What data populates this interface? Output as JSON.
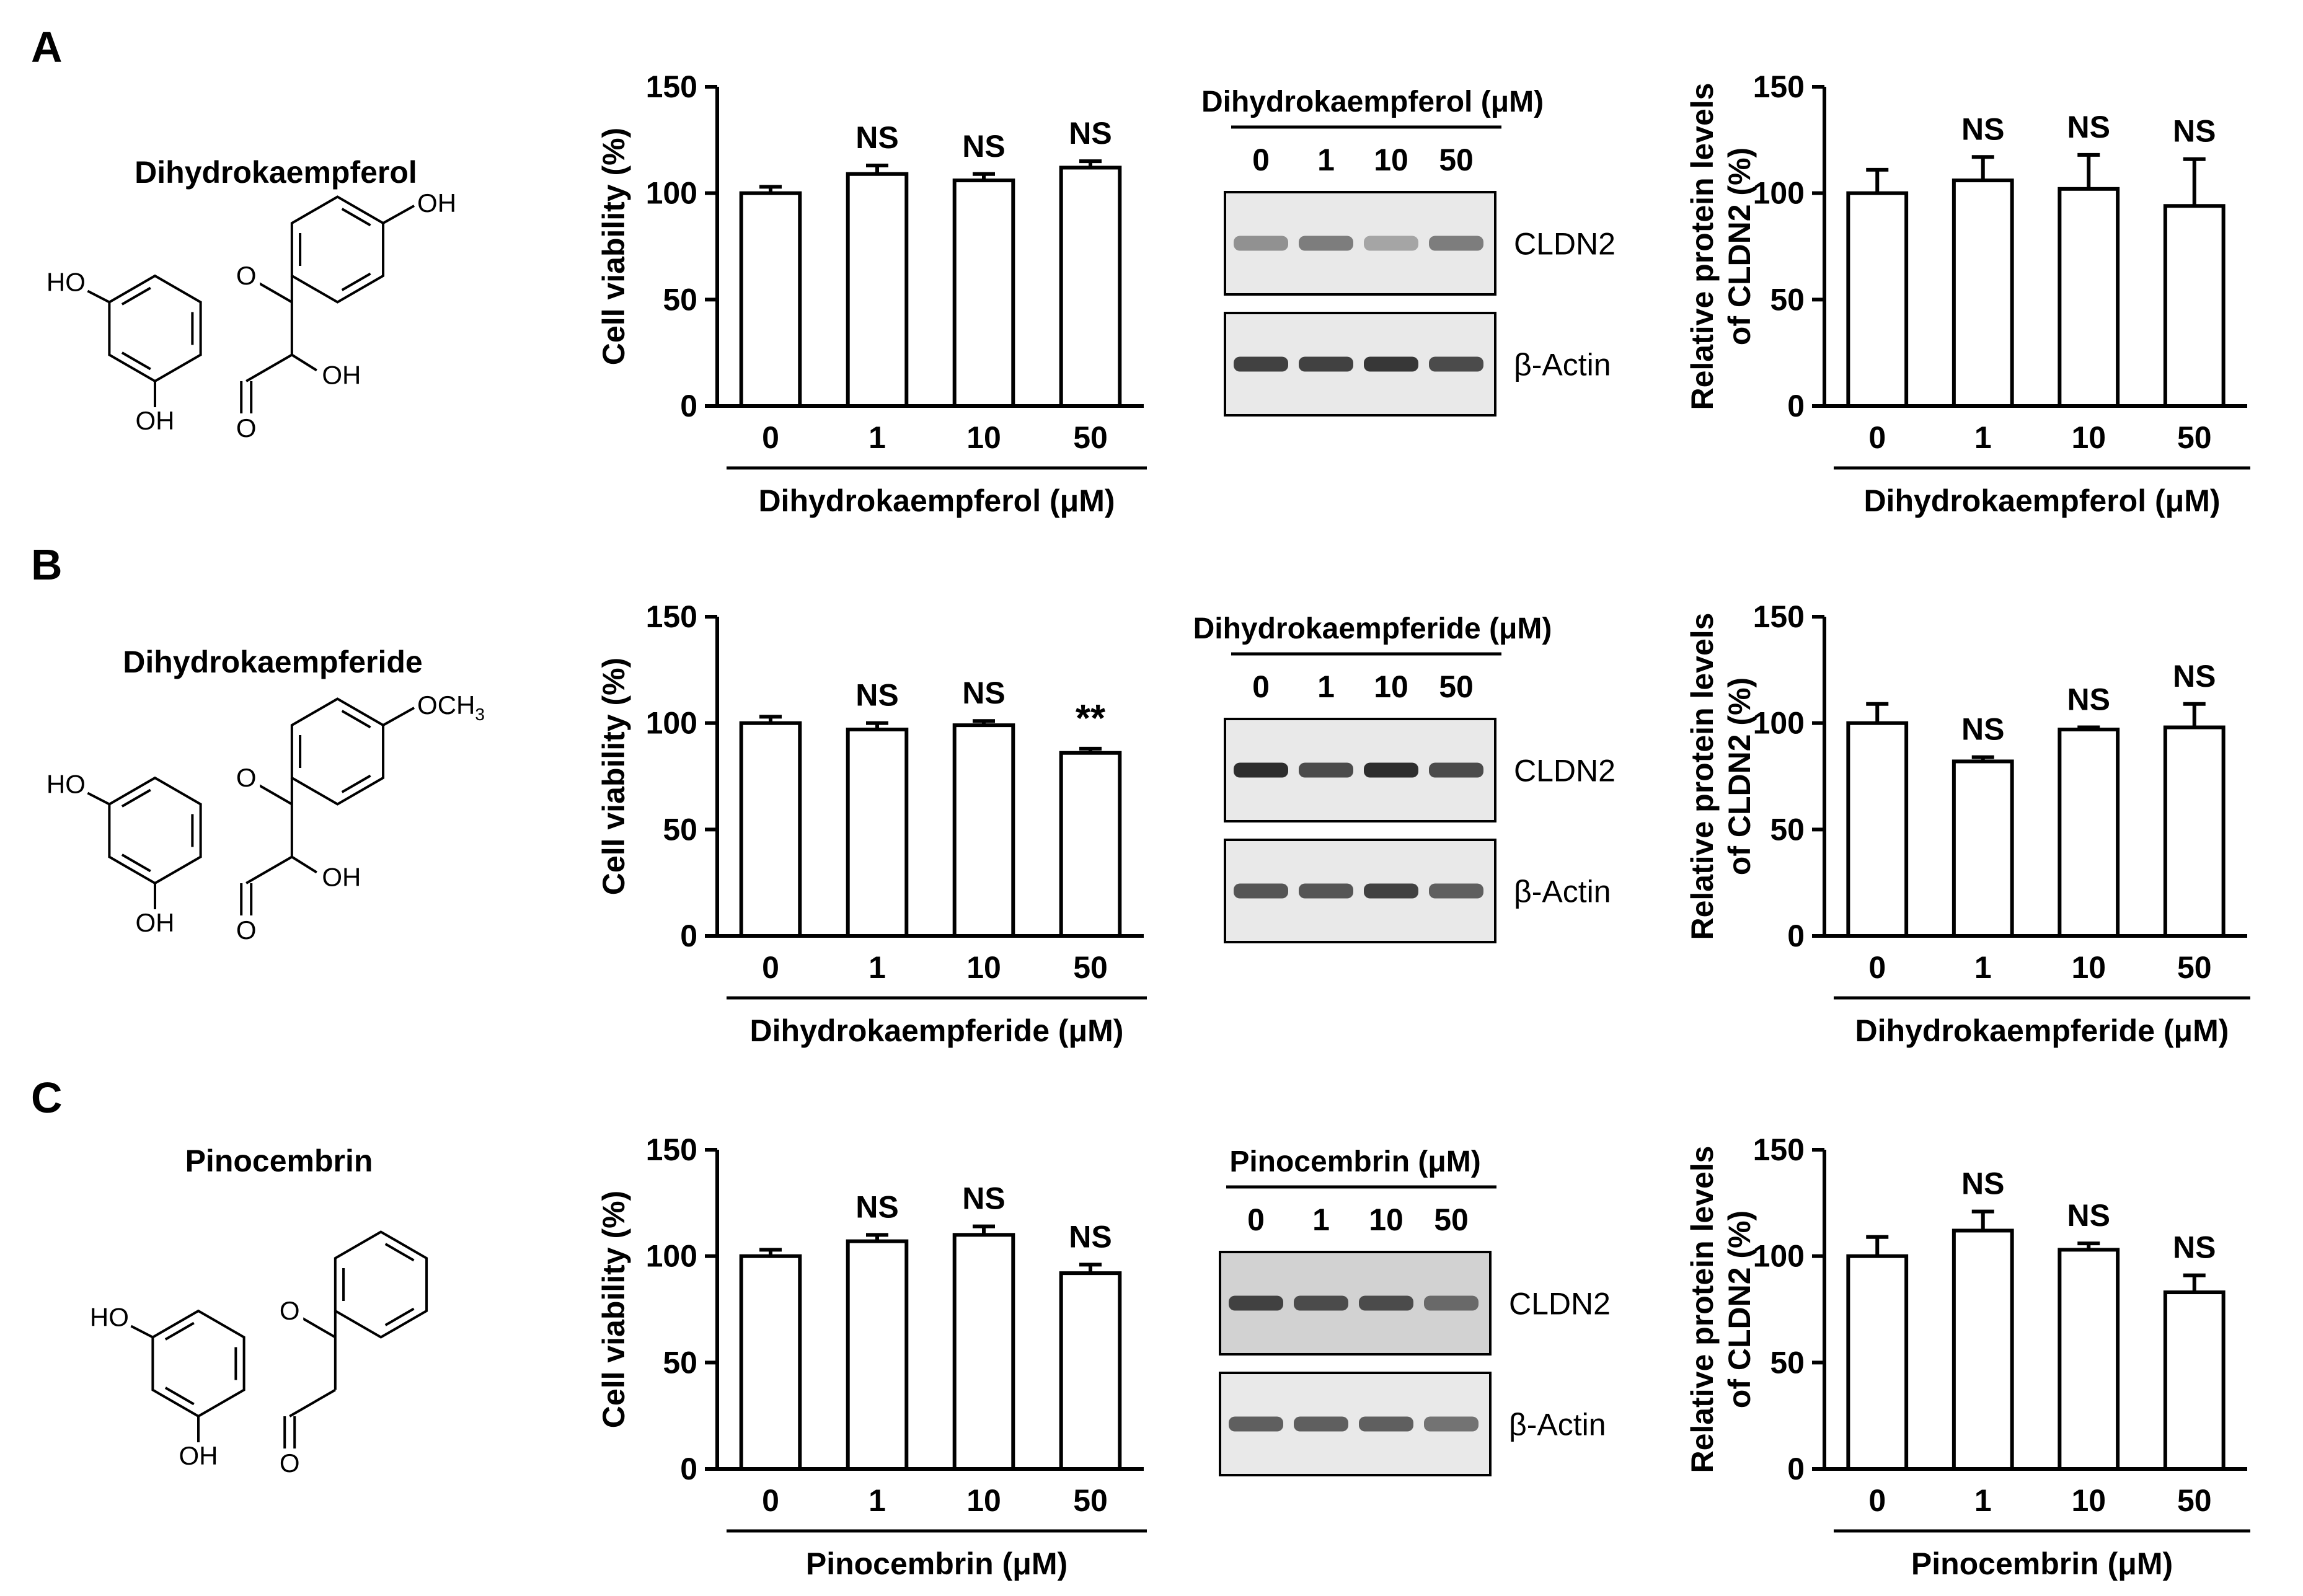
{
  "panels": [
    {
      "letter": "A",
      "compound": "Dihydrokaempferol",
      "structure": {
        "substituent": "OH",
        "ring_c_oh": "OH",
        "labels": [
          "HO",
          "OH",
          "O",
          "OH"
        ]
      },
      "blot": {
        "title": "Dihydrokaempferol (μM)",
        "lanes": [
          "0",
          "1",
          "10",
          "50"
        ],
        "rows": [
          {
            "label": "CLDN2",
            "band_intensity": [
              0.45,
              0.55,
              0.35,
              0.55
            ],
            "background": "light"
          },
          {
            "label": "β-Actin",
            "band_intensity": [
              0.85,
              0.85,
              0.9,
              0.8
            ],
            "background": "light"
          }
        ]
      }
    },
    {
      "letter": "B",
      "compound": "Dihydrokaempferide",
      "structure": {
        "substituent": "OCH3",
        "ring_c_oh": "OH",
        "labels": [
          "HO",
          "OH",
          "O",
          "OH"
        ]
      },
      "blot": {
        "title": "Dihydrokaempferide (μM)",
        "lanes": [
          "0",
          "1",
          "10",
          "50"
        ],
        "rows": [
          {
            "label": "CLDN2",
            "band_intensity": [
              0.95,
              0.8,
              0.95,
              0.8
            ],
            "background": "light"
          },
          {
            "label": "β-Actin",
            "band_intensity": [
              0.75,
              0.75,
              0.85,
              0.7
            ],
            "background": "light"
          }
        ]
      }
    },
    {
      "letter": "C",
      "compound": "Pinocembrin",
      "structure": {
        "substituent": "",
        "ring_c_oh": "",
        "labels": [
          "HO",
          "OH",
          "O"
        ]
      },
      "blot": {
        "title": "Pinocembrin (μM)",
        "lanes": [
          "0",
          "1",
          "10",
          "50"
        ],
        "rows": [
          {
            "label": "CLDN2",
            "band_intensity": [
              0.85,
              0.8,
              0.8,
              0.65
            ],
            "background": "gray"
          },
          {
            "label": "β-Actin",
            "band_intensity": [
              0.7,
              0.7,
              0.7,
              0.6
            ],
            "background": "light"
          }
        ]
      }
    }
  ],
  "chart_data": [
    {
      "type": "bar",
      "panel": "A",
      "categories": [
        "0",
        "1",
        "10",
        "50"
      ],
      "values": [
        100,
        109,
        106,
        112
      ],
      "errors": [
        3,
        4,
        3,
        3
      ],
      "annotations": [
        "",
        "NS",
        "NS",
        "NS"
      ],
      "title": "",
      "xlabel": "Dihydrokaempferol (μM)",
      "ylabel": "Cell viability (%)",
      "ylim": [
        0,
        150
      ],
      "yticks": [
        "0",
        "50",
        "100",
        "150"
      ]
    },
    {
      "type": "bar",
      "panel": "A",
      "categories": [
        "0",
        "1",
        "10",
        "50"
      ],
      "values": [
        100,
        106,
        102,
        94
      ],
      "errors": [
        11,
        11,
        16,
        22
      ],
      "annotations": [
        "",
        "NS",
        "NS",
        "NS"
      ],
      "title": "",
      "xlabel": "Dihydrokaempferol (μM)",
      "ylabel": "Relative protein levels of CLDN2 (%)",
      "ylim": [
        0,
        150
      ],
      "yticks": [
        "0",
        "50",
        "100",
        "150"
      ]
    },
    {
      "type": "bar",
      "panel": "B",
      "categories": [
        "0",
        "1",
        "10",
        "50"
      ],
      "values": [
        100,
        97,
        99,
        86
      ],
      "errors": [
        3,
        3,
        2,
        2
      ],
      "annotations": [
        "",
        "NS",
        "NS",
        "**"
      ],
      "title": "",
      "xlabel": "Dihydrokaempferide (μM)",
      "ylabel": "Cell viability (%)",
      "ylim": [
        0,
        150
      ],
      "yticks": [
        "0",
        "50",
        "100",
        "150"
      ]
    },
    {
      "type": "bar",
      "panel": "B",
      "categories": [
        "0",
        "1",
        "10",
        "50"
      ],
      "values": [
        100,
        82,
        97,
        98
      ],
      "errors": [
        9,
        2,
        1,
        11
      ],
      "annotations": [
        "",
        "NS",
        "NS",
        "NS"
      ],
      "title": "",
      "xlabel": "Dihydrokaempferide (μM)",
      "ylabel": "Relative protein levels of CLDN2 (%)",
      "ylim": [
        0,
        150
      ],
      "yticks": [
        "0",
        "50",
        "100",
        "150"
      ]
    },
    {
      "type": "bar",
      "panel": "C",
      "categories": [
        "0",
        "1",
        "10",
        "50"
      ],
      "values": [
        100,
        107,
        110,
        92
      ],
      "errors": [
        3,
        3,
        4,
        4
      ],
      "annotations": [
        "",
        "NS",
        "NS",
        "NS"
      ],
      "title": "",
      "xlabel": "Pinocembrin (μM)",
      "ylabel": "Cell viability (%)",
      "ylim": [
        0,
        150
      ],
      "yticks": [
        "0",
        "50",
        "100",
        "150"
      ]
    },
    {
      "type": "bar",
      "panel": "C",
      "categories": [
        "0",
        "1",
        "10",
        "50"
      ],
      "values": [
        100,
        112,
        103,
        83
      ],
      "errors": [
        9,
        9,
        3,
        8
      ],
      "annotations": [
        "",
        "NS",
        "NS",
        "NS"
      ],
      "title": "",
      "xlabel": "Pinocembrin (μM)",
      "ylabel": "Relative protein levels of CLDN2 (%)",
      "ylim": [
        0,
        150
      ],
      "yticks": [
        "0",
        "50",
        "100",
        "150"
      ]
    }
  ]
}
